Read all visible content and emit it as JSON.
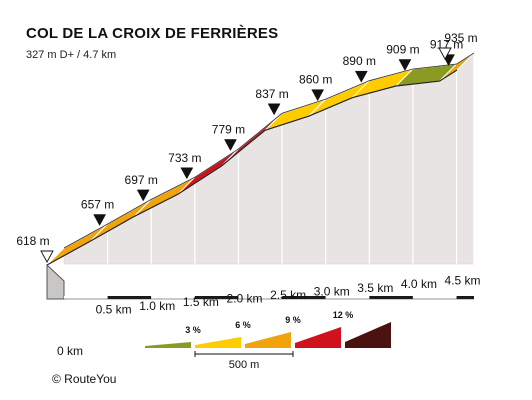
{
  "header": {
    "title": "COL DE LA CROIX DE FERRIÈRES",
    "subtitle": "327 m D+ / 4.7 km"
  },
  "footer": {
    "credit": "©  RouteYou"
  },
  "colors": {
    "grade_0_3": "#8a9a22",
    "grade_3_6": "#ffcc00",
    "grade_6_9": "#f0a30a",
    "grade_9_12": "#d0121e",
    "grade_12_plus": "#4a1210",
    "side_face": "#e9e4e4",
    "base_block": "#c9c6c6"
  },
  "chart_data": {
    "type": "area",
    "title": "COL DE LA CROIX DE FERRIÈRES",
    "subtitle": "327 m D+ / 4.7 km",
    "x_unit": "km",
    "y_unit": "m",
    "xlim": [
      0,
      4.7
    ],
    "ylim": [
      618,
      935
    ],
    "x_ticks": [
      {
        "value": 0,
        "label": "0 km"
      },
      {
        "value": 0.5,
        "label": "0.5 km"
      },
      {
        "value": 1.0,
        "label": "1.0 km"
      },
      {
        "value": 1.5,
        "label": "1.5 km"
      },
      {
        "value": 2.0,
        "label": "2.0 km"
      },
      {
        "value": 2.5,
        "label": "2.5 km"
      },
      {
        "value": 3.0,
        "label": "3.0 km"
      },
      {
        "value": 3.5,
        "label": "3.5 km"
      },
      {
        "value": 4.0,
        "label": "4.0 km"
      },
      {
        "value": 4.5,
        "label": "4.5 km"
      }
    ],
    "points": [
      {
        "km": 0,
        "elev": 618,
        "label": "618 m",
        "marker": "start"
      },
      {
        "km": 0.5,
        "elev": 657,
        "label": "657 m",
        "marker": "km"
      },
      {
        "km": 1.0,
        "elev": 697,
        "label": "697 m",
        "marker": "km"
      },
      {
        "km": 1.5,
        "elev": 733,
        "label": "733 m",
        "marker": "km"
      },
      {
        "km": 2.0,
        "elev": 779,
        "label": "779 m",
        "marker": "km"
      },
      {
        "km": 2.5,
        "elev": 837,
        "label": "837 m",
        "marker": "km"
      },
      {
        "km": 3.0,
        "elev": 860,
        "label": "860 m",
        "marker": "km"
      },
      {
        "km": 3.5,
        "elev": 890,
        "label": "890 m",
        "marker": "km"
      },
      {
        "km": 4.0,
        "elev": 909,
        "label": "909 m",
        "marker": "km"
      },
      {
        "km": 4.5,
        "elev": 917,
        "label": "917 m",
        "marker": "km"
      },
      {
        "km": 4.7,
        "elev": 935,
        "label": "935 m",
        "marker": "end"
      }
    ],
    "segments": [
      {
        "from": 0,
        "to": 0.5,
        "grade": "grade_6_9"
      },
      {
        "from": 0.5,
        "to": 1.0,
        "grade": "grade_6_9"
      },
      {
        "from": 1.0,
        "to": 1.5,
        "grade": "grade_6_9"
      },
      {
        "from": 1.5,
        "to": 2.0,
        "grade": "grade_9_12"
      },
      {
        "from": 2.0,
        "to": 2.5,
        "grade": "grade_9_12"
      },
      {
        "from": 2.5,
        "to": 3.0,
        "grade": "grade_3_6"
      },
      {
        "from": 3.0,
        "to": 3.5,
        "grade": "grade_3_6"
      },
      {
        "from": 3.5,
        "to": 4.0,
        "grade": "grade_3_6"
      },
      {
        "from": 4.0,
        "to": 4.5,
        "grade": "grade_0_3"
      },
      {
        "from": 4.5,
        "to": 4.7,
        "grade": "grade_6_9"
      }
    ],
    "legend": {
      "items": [
        {
          "key": "grade_0_3",
          "label": ""
        },
        {
          "key": "grade_3_6",
          "label": "3 %"
        },
        {
          "key": "grade_6_9",
          "label": "6 %"
        },
        {
          "key": "grade_9_12",
          "label": "9 %"
        },
        {
          "key": "grade_12_plus",
          "label": "12 %"
        }
      ],
      "scale_label": "500 m"
    }
  }
}
